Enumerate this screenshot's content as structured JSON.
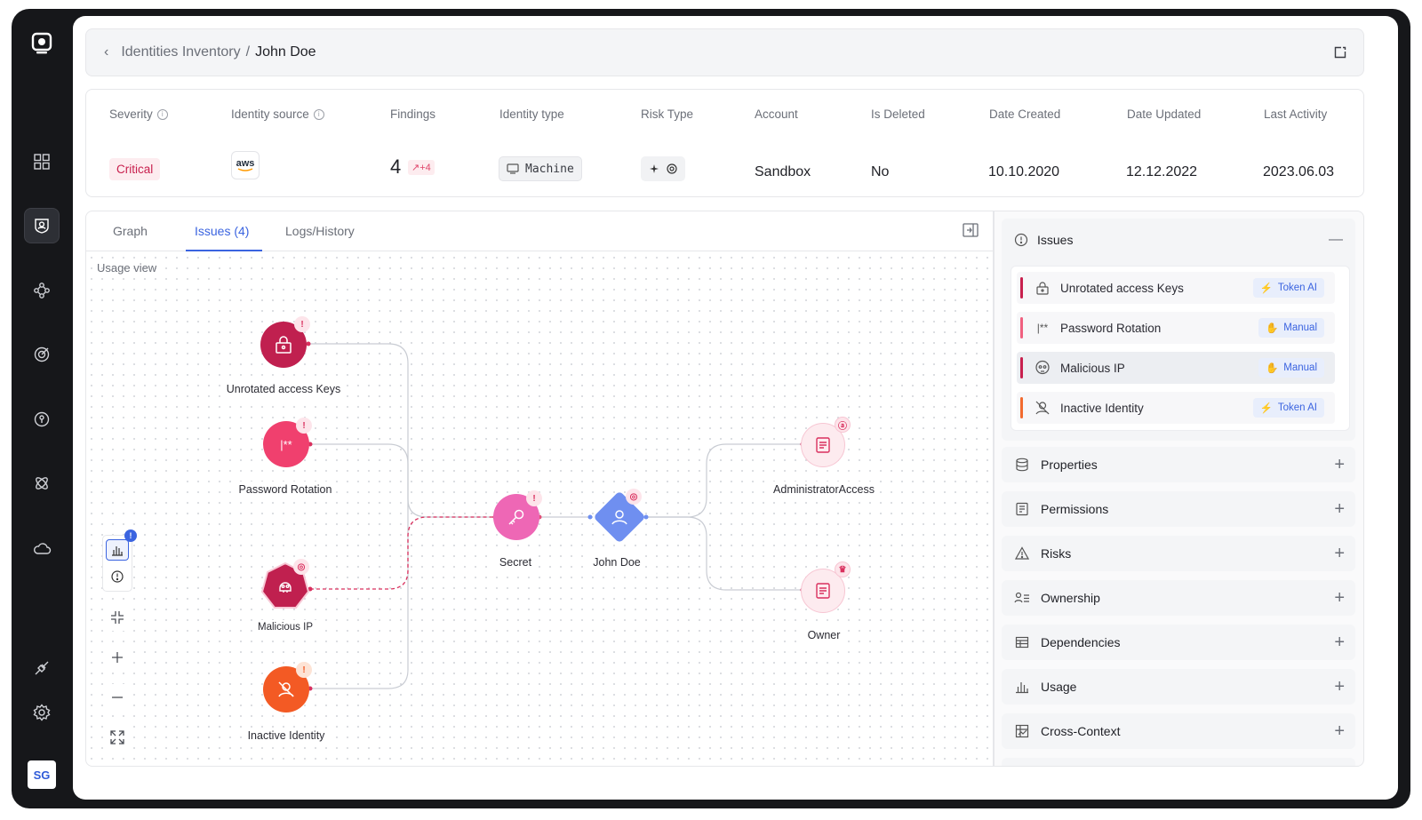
{
  "sidebar": {
    "avatar_initials": "SG",
    "items": [
      {
        "icon": "grid-icon"
      },
      {
        "icon": "identity-shield-icon",
        "active": true
      },
      {
        "icon": "nodes-icon"
      },
      {
        "icon": "target-icon"
      },
      {
        "icon": "key-circle-icon"
      },
      {
        "icon": "atom-icon"
      },
      {
        "icon": "cloud-icon"
      },
      {
        "icon": "plug-icon"
      },
      {
        "icon": "settings-icon"
      }
    ]
  },
  "breadcrumb": {
    "parent": "Identities Inventory",
    "separator": "/",
    "current": "John Doe"
  },
  "stats": {
    "severity": {
      "label": "Severity",
      "value": "Critical"
    },
    "identity_source": {
      "label": "Identity source",
      "value": "aws"
    },
    "findings": {
      "label": "Findings",
      "value": "4",
      "delta": "+4"
    },
    "identity_type": {
      "label": "Identity type",
      "value": "Machine"
    },
    "risk_type": {
      "label": "Risk Type"
    },
    "account": {
      "label": "Account",
      "value": "Sandbox"
    },
    "is_deleted": {
      "label": "Is Deleted",
      "value": "No"
    },
    "date_created": {
      "label": "Date Created",
      "value": "10.10.2020"
    },
    "date_updated": {
      "label": "Date Updated",
      "value": "12.12.2022"
    },
    "last_activity": {
      "label": "Last Activity",
      "value": "2023.06.03"
    }
  },
  "tabs": [
    {
      "label": "Graph"
    },
    {
      "label": "Issues (4)",
      "active": true
    },
    {
      "label": "Logs/History"
    }
  ],
  "graph": {
    "view_label": "Usage view",
    "nodes": {
      "unrotated": "Unrotated access Keys",
      "password": "Password Rotation",
      "malicious": "Malicious IP",
      "inactive": "Inactive Identity",
      "secret": "Secret",
      "john": "John Doe",
      "admin": "AdministratorAccess",
      "owner": "Owner"
    },
    "controls": {
      "badge": "!"
    }
  },
  "issues_panel": {
    "title": "Issues",
    "items": [
      {
        "name": "Unrotated access Keys",
        "tag": "Token AI",
        "color": "#c8204e"
      },
      {
        "name": "Password Rotation",
        "tag": "Manual",
        "color": "#f0607f"
      },
      {
        "name": "Malicious IP",
        "tag": "Manual",
        "color": "#c8204e"
      },
      {
        "name": "Inactive Identity",
        "tag": "Token AI",
        "color": "#f26a2e"
      }
    ]
  },
  "sections": [
    {
      "label": "Properties",
      "icon": "database-icon"
    },
    {
      "label": "Permissions",
      "icon": "document-icon"
    },
    {
      "label": "Risks",
      "icon": "warning-icon"
    },
    {
      "label": "Ownership",
      "icon": "person-list-icon"
    },
    {
      "label": "Dependencies",
      "icon": "table-icon"
    },
    {
      "label": "Usage",
      "icon": "bar-chart-icon"
    },
    {
      "label": "Cross-Context",
      "icon": "grid-chart-icon"
    }
  ],
  "colors": {
    "accent": "#3b64e0",
    "critical": "#c8204e",
    "pink": "#f0607f",
    "orange": "#f26a2e",
    "node_blue": "#6f8ff0"
  }
}
